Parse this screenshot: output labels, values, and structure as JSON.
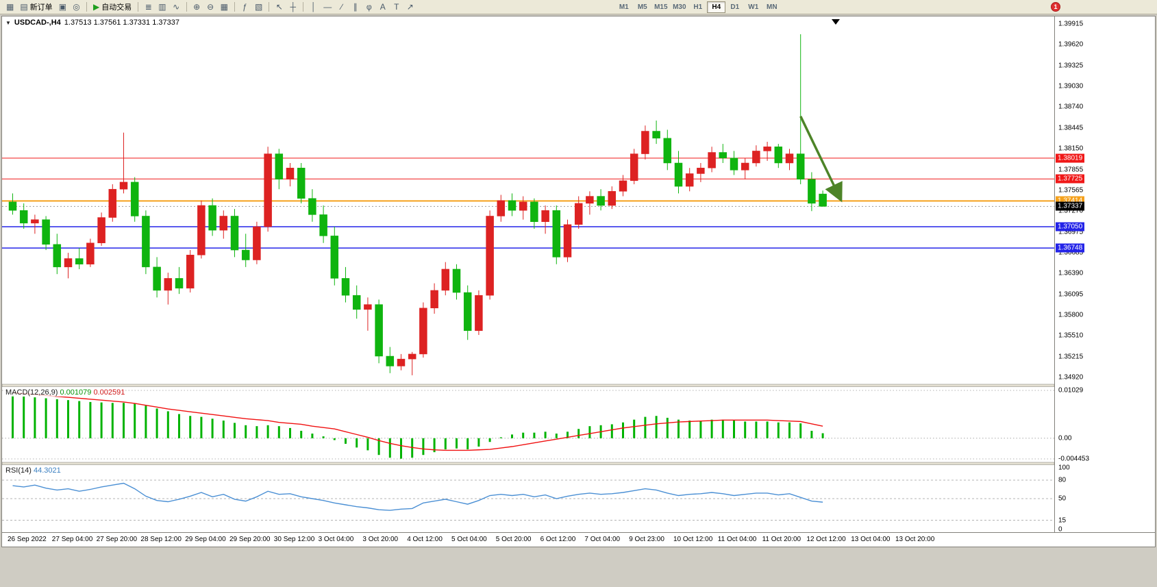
{
  "toolbar": {
    "buttons": [
      {
        "name": "new-chart",
        "glyph": "▦"
      },
      {
        "name": "new-order",
        "glyph": "▤",
        "label": "新订单"
      },
      {
        "name": "chart-windows",
        "glyph": "▣"
      },
      {
        "name": "alerts",
        "glyph": "◎"
      },
      {
        "name": "sep"
      },
      {
        "name": "autotrading",
        "glyph": "▶",
        "label": "自动交易",
        "glyph_color": "#1e9e1e"
      },
      {
        "name": "sep"
      },
      {
        "name": "bar-chart",
        "glyph": "≣"
      },
      {
        "name": "candlestick-chart",
        "glyph": "▥"
      },
      {
        "name": "line-chart",
        "glyph": "∿"
      },
      {
        "name": "sep"
      },
      {
        "name": "zoom-in",
        "glyph": "⊕"
      },
      {
        "name": "zoom-out",
        "glyph": "⊖"
      },
      {
        "name": "tile-windows",
        "glyph": "▦"
      },
      {
        "name": "sep"
      },
      {
        "name": "indicators",
        "glyph": "ƒ"
      },
      {
        "name": "templates",
        "glyph": "▧"
      },
      {
        "name": "sep"
      },
      {
        "name": "cursor",
        "glyph": "↖"
      },
      {
        "name": "crosshair",
        "glyph": "┼"
      },
      {
        "name": "sep"
      },
      {
        "name": "vertical-line",
        "glyph": "│"
      },
      {
        "name": "horizontal-line",
        "glyph": "―"
      },
      {
        "name": "trendline",
        "glyph": "∕"
      },
      {
        "name": "equidistant-channel",
        "glyph": "∥"
      },
      {
        "name": "fibonacci",
        "glyph": "φ"
      },
      {
        "name": "text",
        "glyph": "A"
      },
      {
        "name": "text-label",
        "glyph": "T"
      },
      {
        "name": "arrows",
        "glyph": "↗"
      }
    ],
    "timeframes": [
      "M1",
      "M5",
      "M15",
      "M30",
      "H1",
      "H4",
      "D1",
      "W1",
      "MN"
    ],
    "active_timeframe": "H4",
    "notification_count": "1"
  },
  "chart": {
    "symbol_period": "USDCAD-,H4",
    "ohlc_text": "1.37513 1.37561 1.37331 1.37337",
    "current_price_label": "1.37337"
  },
  "macd": {
    "name": "MACD(12,26,9)",
    "main_value": "0.001079",
    "signal_value": "0.002591"
  },
  "rsi": {
    "name": "RSI(14)",
    "value": "44.3021"
  },
  "chart_data": {
    "type": "candlestick",
    "symbol": "USDCAD",
    "timeframe": "H4",
    "up_color": "#dd2222",
    "down_color": "#0fb40f",
    "note_color_convention": "red = bullish, green = bearish",
    "ylim": [
      1.3492,
      1.39915
    ],
    "price_ticks": [
      "1.39915",
      "1.39620",
      "1.39325",
      "1.39030",
      "1.38740",
      "1.38445",
      "1.38150",
      "1.37855",
      "1.37565",
      "1.37270",
      "1.36975",
      "1.36685",
      "1.36390",
      "1.36095",
      "1.35800",
      "1.35510",
      "1.35215",
      "1.34920"
    ],
    "x_labels": [
      "26 Sep 2022",
      "27 Sep 04:00",
      "27 Sep 20:00",
      "28 Sep 12:00",
      "29 Sep 04:00",
      "29 Sep 20:00",
      "30 Sep 12:00",
      "3 Oct 04:00",
      "3 Oct 20:00",
      "4 Oct 12:00",
      "5 Oct 04:00",
      "5 Oct 20:00",
      "6 Oct 12:00",
      "7 Oct 04:00",
      "9 Oct 23:00",
      "10 Oct 12:00",
      "11 Oct 04:00",
      "11 Oct 20:00",
      "12 Oct 12:00",
      "13 Oct 04:00",
      "13 Oct 20:00"
    ],
    "horizontal_levels": [
      {
        "price": 1.38019,
        "label": "1.38019",
        "color": "#f01818",
        "width": 1
      },
      {
        "price": 1.37725,
        "label": "1.37725",
        "color": "#f01818",
        "width": 1
      },
      {
        "price": 1.37414,
        "label": "1.37414",
        "color": "#f5a11c",
        "width": 2
      },
      {
        "price": 1.3705,
        "label": "1.37050",
        "color": "#2424e8",
        "width": 1.5
      },
      {
        "price": 1.36748,
        "label": "1.36748",
        "color": "#2424e8",
        "width": 1.5
      }
    ],
    "current_price": 1.37337,
    "candles_ohlc": [
      [
        1.374,
        1.3752,
        1.3722,
        1.3728
      ],
      [
        1.3728,
        1.3738,
        1.3702,
        1.371
      ],
      [
        1.371,
        1.3722,
        1.3695,
        1.3715
      ],
      [
        1.3715,
        1.372,
        1.3672,
        1.368
      ],
      [
        1.368,
        1.3695,
        1.3638,
        1.3648
      ],
      [
        1.3648,
        1.3668,
        1.3632,
        1.366
      ],
      [
        1.366,
        1.3675,
        1.3645,
        1.3652
      ],
      [
        1.3652,
        1.3688,
        1.3648,
        1.3682
      ],
      [
        1.3682,
        1.3725,
        1.3678,
        1.3718
      ],
      [
        1.3718,
        1.3765,
        1.3712,
        1.3758
      ],
      [
        1.3758,
        1.3838,
        1.3752,
        1.3768
      ],
      [
        1.3768,
        1.3775,
        1.3712,
        1.372
      ],
      [
        1.372,
        1.3728,
        1.3638,
        1.3648
      ],
      [
        1.3648,
        1.3662,
        1.3605,
        1.3615
      ],
      [
        1.3615,
        1.364,
        1.3595,
        1.3632
      ],
      [
        1.3632,
        1.3648,
        1.361,
        1.3618
      ],
      [
        1.3618,
        1.3672,
        1.3612,
        1.3665
      ],
      [
        1.3665,
        1.3742,
        1.366,
        1.3735
      ],
      [
        1.3735,
        1.3745,
        1.3692,
        1.37
      ],
      [
        1.37,
        1.3728,
        1.3688,
        1.372
      ],
      [
        1.372,
        1.373,
        1.3662,
        1.3672
      ],
      [
        1.3672,
        1.3695,
        1.3648,
        1.3658
      ],
      [
        1.3658,
        1.3712,
        1.3652,
        1.3705
      ],
      [
        1.3705,
        1.3818,
        1.3698,
        1.3808
      ],
      [
        1.3808,
        1.3815,
        1.3758,
        1.3772
      ],
      [
        1.3772,
        1.3795,
        1.3762,
        1.3788
      ],
      [
        1.3788,
        1.3795,
        1.3738,
        1.3745
      ],
      [
        1.3745,
        1.3758,
        1.3712,
        1.3722
      ],
      [
        1.3722,
        1.3735,
        1.3682,
        1.3692
      ],
      [
        1.3692,
        1.3705,
        1.3622,
        1.3632
      ],
      [
        1.3632,
        1.3648,
        1.3598,
        1.3608
      ],
      [
        1.3608,
        1.3622,
        1.3575,
        1.3588
      ],
      [
        1.3588,
        1.3605,
        1.3558,
        1.3595
      ],
      [
        1.3595,
        1.3602,
        1.3512,
        1.3522
      ],
      [
        1.3522,
        1.3535,
        1.3498,
        1.3508
      ],
      [
        1.3508,
        1.3525,
        1.3502,
        1.3518
      ],
      [
        1.3518,
        1.3528,
        1.3495,
        1.3525
      ],
      [
        1.3525,
        1.3598,
        1.352,
        1.359
      ],
      [
        1.359,
        1.3625,
        1.3582,
        1.3615
      ],
      [
        1.3615,
        1.3655,
        1.3608,
        1.3645
      ],
      [
        1.3645,
        1.3652,
        1.3602,
        1.3612
      ],
      [
        1.3612,
        1.3622,
        1.3545,
        1.3558
      ],
      [
        1.3558,
        1.3615,
        1.3552,
        1.3608
      ],
      [
        1.3608,
        1.3728,
        1.3602,
        1.372
      ],
      [
        1.372,
        1.375,
        1.3712,
        1.3742
      ],
      [
        1.3742,
        1.3752,
        1.372,
        1.3728
      ],
      [
        1.3728,
        1.3748,
        1.3715,
        1.374
      ],
      [
        1.374,
        1.3745,
        1.3702,
        1.3712
      ],
      [
        1.3712,
        1.3735,
        1.3695,
        1.3728
      ],
      [
        1.3728,
        1.3735,
        1.3652,
        1.3662
      ],
      [
        1.3662,
        1.3715,
        1.3655,
        1.3708
      ],
      [
        1.3708,
        1.3748,
        1.3702,
        1.3738
      ],
      [
        1.3738,
        1.3755,
        1.3722,
        1.3748
      ],
      [
        1.3748,
        1.3758,
        1.3728,
        1.3735
      ],
      [
        1.3735,
        1.3762,
        1.373,
        1.3755
      ],
      [
        1.3755,
        1.3778,
        1.3748,
        1.377
      ],
      [
        1.377,
        1.3815,
        1.3765,
        1.3808
      ],
      [
        1.3808,
        1.3848,
        1.38,
        1.384
      ],
      [
        1.384,
        1.3855,
        1.3822,
        1.383
      ],
      [
        1.383,
        1.3842,
        1.3785,
        1.3795
      ],
      [
        1.3795,
        1.3812,
        1.3752,
        1.3762
      ],
      [
        1.3762,
        1.3788,
        1.3755,
        1.378
      ],
      [
        1.378,
        1.3795,
        1.3768,
        1.3788
      ],
      [
        1.3788,
        1.3818,
        1.3782,
        1.381
      ],
      [
        1.381,
        1.3822,
        1.3795,
        1.3802
      ],
      [
        1.3802,
        1.3812,
        1.3778,
        1.3785
      ],
      [
        1.3785,
        1.3802,
        1.3772,
        1.3795
      ],
      [
        1.3795,
        1.382,
        1.379,
        1.3812
      ],
      [
        1.3812,
        1.3825,
        1.3798,
        1.3818
      ],
      [
        1.3818,
        1.3822,
        1.3788,
        1.3795
      ],
      [
        1.3795,
        1.3815,
        1.3785,
        1.3808
      ],
      [
        1.3808,
        1.3977,
        1.3765,
        1.3772
      ],
      [
        1.3772,
        1.3782,
        1.3727,
        1.3738
      ],
      [
        1.37513,
        1.37561,
        1.37331,
        1.37337
      ]
    ],
    "indicators": {
      "macd": {
        "params": "12,26,9",
        "ticks": [
          0.01029,
          0.0,
          -0.004453
        ],
        "ticks_labels": [
          "0.01029",
          "0.00",
          "-0.004453"
        ],
        "histogram": [
          0.0092,
          0.009,
          0.0088,
          0.0086,
          0.0084,
          0.0082,
          0.008,
          0.0078,
          0.0077,
          0.0076,
          0.0076,
          0.0074,
          0.007,
          0.0064,
          0.0058,
          0.0052,
          0.0048,
          0.0046,
          0.0042,
          0.0038,
          0.0033,
          0.0028,
          0.0026,
          0.0028,
          0.0026,
          0.0022,
          0.0016,
          0.001,
          0.0004,
          -0.0004,
          -0.0012,
          -0.002,
          -0.0026,
          -0.0036,
          -0.0042,
          -0.0044,
          -0.0042,
          -0.0036,
          -0.003,
          -0.0024,
          -0.0022,
          -0.0024,
          -0.0018,
          -0.0008,
          0.0002,
          0.0008,
          0.0012,
          0.0012,
          0.0014,
          0.001,
          0.0014,
          0.002,
          0.0026,
          0.0028,
          0.003,
          0.0034,
          0.004,
          0.0046,
          0.0048,
          0.0044,
          0.004,
          0.0038,
          0.0038,
          0.004,
          0.004,
          0.0038,
          0.0036,
          0.0036,
          0.0036,
          0.0034,
          0.0034,
          0.0032,
          0.0016,
          0.001079
        ],
        "signal": [
          0.0098,
          0.0096,
          0.0094,
          0.0092,
          0.009,
          0.0088,
          0.0086,
          0.0084,
          0.0082,
          0.008,
          0.0078,
          0.0075,
          0.0071,
          0.0067,
          0.0063,
          0.006,
          0.0057,
          0.0054,
          0.0051,
          0.0048,
          0.0045,
          0.0042,
          0.004,
          0.0038,
          0.0034,
          0.0032,
          0.003,
          0.0026,
          0.0023,
          0.002,
          0.0014,
          0.0008,
          0.0002,
          -0.0005,
          -0.0011,
          -0.0016,
          -0.002,
          -0.0023,
          -0.0025,
          -0.0026,
          -0.0026,
          -0.0026,
          -0.0025,
          -0.0024,
          -0.0021,
          -0.0018,
          -0.0014,
          -0.001,
          -0.0006,
          -0.0002,
          0.0002,
          0.0006,
          0.001,
          0.0014,
          0.0018,
          0.0022,
          0.0025,
          0.0028,
          0.0031,
          0.0033,
          0.0035,
          0.0036,
          0.0037,
          0.0038,
          0.0039,
          0.0039,
          0.0039,
          0.0039,
          0.0039,
          0.0038,
          0.0037,
          0.0036,
          0.0031,
          0.002591
        ],
        "histogram_color": "#00b300",
        "signal_color": "#f01010"
      },
      "rsi": {
        "params": "14",
        "ticks_labels": [
          "100",
          "80",
          "50",
          "15",
          "0"
        ],
        "levels": [
          80,
          50,
          15
        ],
        "line_color": "#4a8fd4",
        "values": [
          71,
          69,
          72,
          67,
          64,
          66,
          62,
          65,
          69,
          72,
          75,
          66,
          54,
          47,
          45,
          49,
          54,
          60,
          53,
          57,
          49,
          46,
          53,
          62,
          57,
          58,
          53,
          50,
          47,
          43,
          40,
          37,
          35,
          32,
          31,
          33,
          34,
          43,
          46,
          49,
          45,
          41,
          47,
          55,
          57,
          55,
          57,
          53,
          56,
          50,
          54,
          57,
          59,
          57,
          58,
          60,
          63,
          66,
          64,
          59,
          55,
          57,
          58,
          60,
          58,
          55,
          57,
          59,
          59,
          56,
          58,
          52,
          46,
          44.3
        ]
      }
    },
    "annotations": [
      {
        "type": "arrow",
        "color": "#4d8428",
        "from_index": 71.0,
        "from_price": 1.3861,
        "to_index": 74.6,
        "to_price": 1.3744
      }
    ]
  }
}
